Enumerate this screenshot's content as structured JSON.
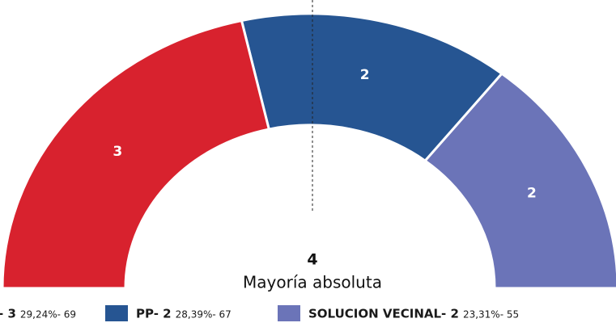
{
  "chart_data": {
    "type": "parliament",
    "series": [
      {
        "name": "- 3",
        "detail": "29,24%- 69",
        "color": "#d8222e",
        "values": [
          3
        ]
      },
      {
        "name": "PP- 2",
        "detail": "28,39%- 67",
        "color": "#265592",
        "values": [
          2
        ]
      },
      {
        "name": "SOLUCION VECINAL- 2",
        "detail": "23,31%- 55",
        "color": "#6b74b8",
        "values": [
          2
        ]
      }
    ],
    "majority": {
      "value": 4,
      "label": "Mayoría absoluta"
    }
  }
}
